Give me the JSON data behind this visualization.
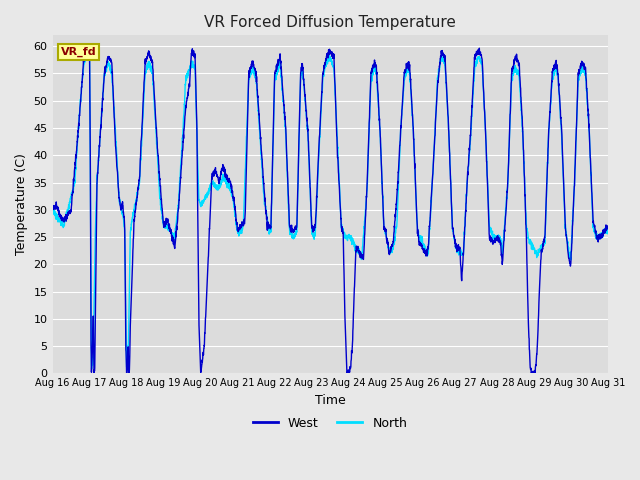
{
  "title": "VR Forced Diffusion Temperature",
  "xlabel": "Time",
  "ylabel": "Temperature (C)",
  "ylim": [
    0,
    62
  ],
  "yticks": [
    0,
    5,
    10,
    15,
    20,
    25,
    30,
    35,
    40,
    45,
    50,
    55,
    60
  ],
  "west_color": "#0000CC",
  "north_color": "#00DDFF",
  "legend_west": "West",
  "legend_north": "North",
  "fig_bg": "#E8E8E8",
  "ax_bg": "#DCDCDC",
  "label_box_text": "VR_fd",
  "label_box_bg": "#FFFF99",
  "label_box_edge": "#AAAA00",
  "label_text_color": "#8B0000",
  "grid_color": "#FFFFFF"
}
